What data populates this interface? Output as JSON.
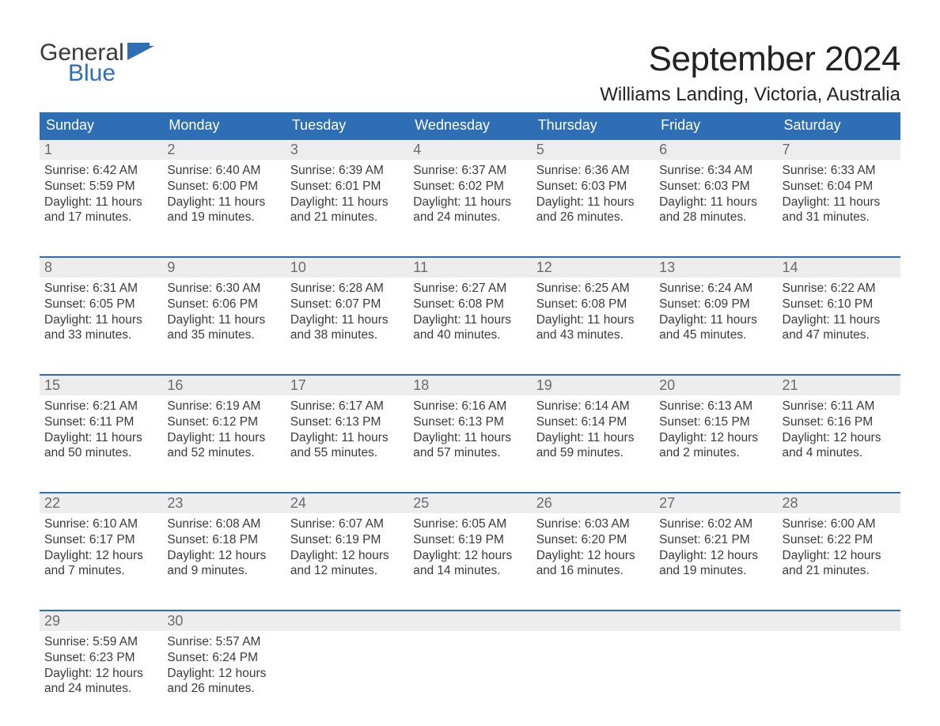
{
  "logo": {
    "text_general": "General",
    "text_blue": "Blue",
    "accent_color": "#2d6eb5"
  },
  "title": "September 2024",
  "location": "Williams Landing, Victoria, Australia",
  "colors": {
    "header_bg": "#2d6eb5",
    "header_fg": "#ffffff",
    "daynum_bg": "#ededed",
    "daynum_fg": "#6b6b6b",
    "body_text": "#3a3a3a",
    "rule": "#2d6eb5",
    "background": "#ffffff"
  },
  "typography": {
    "title_fontsize": 44,
    "location_fontsize": 24,
    "dow_fontsize": 18,
    "daynum_fontsize": 18,
    "body_fontsize": 15.5,
    "font_family": "Arial"
  },
  "day_names": [
    "Sunday",
    "Monday",
    "Tuesday",
    "Wednesday",
    "Thursday",
    "Friday",
    "Saturday"
  ],
  "weeks": [
    [
      {
        "date": 1,
        "sunrise": "6:42 AM",
        "sunset": "5:59 PM",
        "daylight": "11 hours and 17 minutes."
      },
      {
        "date": 2,
        "sunrise": "6:40 AM",
        "sunset": "6:00 PM",
        "daylight": "11 hours and 19 minutes."
      },
      {
        "date": 3,
        "sunrise": "6:39 AM",
        "sunset": "6:01 PM",
        "daylight": "11 hours and 21 minutes."
      },
      {
        "date": 4,
        "sunrise": "6:37 AM",
        "sunset": "6:02 PM",
        "daylight": "11 hours and 24 minutes."
      },
      {
        "date": 5,
        "sunrise": "6:36 AM",
        "sunset": "6:03 PM",
        "daylight": "11 hours and 26 minutes."
      },
      {
        "date": 6,
        "sunrise": "6:34 AM",
        "sunset": "6:03 PM",
        "daylight": "11 hours and 28 minutes."
      },
      {
        "date": 7,
        "sunrise": "6:33 AM",
        "sunset": "6:04 PM",
        "daylight": "11 hours and 31 minutes."
      }
    ],
    [
      {
        "date": 8,
        "sunrise": "6:31 AM",
        "sunset": "6:05 PM",
        "daylight": "11 hours and 33 minutes."
      },
      {
        "date": 9,
        "sunrise": "6:30 AM",
        "sunset": "6:06 PM",
        "daylight": "11 hours and 35 minutes."
      },
      {
        "date": 10,
        "sunrise": "6:28 AM",
        "sunset": "6:07 PM",
        "daylight": "11 hours and 38 minutes."
      },
      {
        "date": 11,
        "sunrise": "6:27 AM",
        "sunset": "6:08 PM",
        "daylight": "11 hours and 40 minutes."
      },
      {
        "date": 12,
        "sunrise": "6:25 AM",
        "sunset": "6:08 PM",
        "daylight": "11 hours and 43 minutes."
      },
      {
        "date": 13,
        "sunrise": "6:24 AM",
        "sunset": "6:09 PM",
        "daylight": "11 hours and 45 minutes."
      },
      {
        "date": 14,
        "sunrise": "6:22 AM",
        "sunset": "6:10 PM",
        "daylight": "11 hours and 47 minutes."
      }
    ],
    [
      {
        "date": 15,
        "sunrise": "6:21 AM",
        "sunset": "6:11 PM",
        "daylight": "11 hours and 50 minutes."
      },
      {
        "date": 16,
        "sunrise": "6:19 AM",
        "sunset": "6:12 PM",
        "daylight": "11 hours and 52 minutes."
      },
      {
        "date": 17,
        "sunrise": "6:17 AM",
        "sunset": "6:13 PM",
        "daylight": "11 hours and 55 minutes."
      },
      {
        "date": 18,
        "sunrise": "6:16 AM",
        "sunset": "6:13 PM",
        "daylight": "11 hours and 57 minutes."
      },
      {
        "date": 19,
        "sunrise": "6:14 AM",
        "sunset": "6:14 PM",
        "daylight": "11 hours and 59 minutes."
      },
      {
        "date": 20,
        "sunrise": "6:13 AM",
        "sunset": "6:15 PM",
        "daylight": "12 hours and 2 minutes."
      },
      {
        "date": 21,
        "sunrise": "6:11 AM",
        "sunset": "6:16 PM",
        "daylight": "12 hours and 4 minutes."
      }
    ],
    [
      {
        "date": 22,
        "sunrise": "6:10 AM",
        "sunset": "6:17 PM",
        "daylight": "12 hours and 7 minutes."
      },
      {
        "date": 23,
        "sunrise": "6:08 AM",
        "sunset": "6:18 PM",
        "daylight": "12 hours and 9 minutes."
      },
      {
        "date": 24,
        "sunrise": "6:07 AM",
        "sunset": "6:19 PM",
        "daylight": "12 hours and 12 minutes."
      },
      {
        "date": 25,
        "sunrise": "6:05 AM",
        "sunset": "6:19 PM",
        "daylight": "12 hours and 14 minutes."
      },
      {
        "date": 26,
        "sunrise": "6:03 AM",
        "sunset": "6:20 PM",
        "daylight": "12 hours and 16 minutes."
      },
      {
        "date": 27,
        "sunrise": "6:02 AM",
        "sunset": "6:21 PM",
        "daylight": "12 hours and 19 minutes."
      },
      {
        "date": 28,
        "sunrise": "6:00 AM",
        "sunset": "6:22 PM",
        "daylight": "12 hours and 21 minutes."
      }
    ],
    [
      {
        "date": 29,
        "sunrise": "5:59 AM",
        "sunset": "6:23 PM",
        "daylight": "12 hours and 24 minutes."
      },
      {
        "date": 30,
        "sunrise": "5:57 AM",
        "sunset": "6:24 PM",
        "daylight": "12 hours and 26 minutes."
      },
      null,
      null,
      null,
      null,
      null
    ]
  ],
  "labels": {
    "sunrise": "Sunrise:",
    "sunset": "Sunset:",
    "daylight": "Daylight:"
  }
}
